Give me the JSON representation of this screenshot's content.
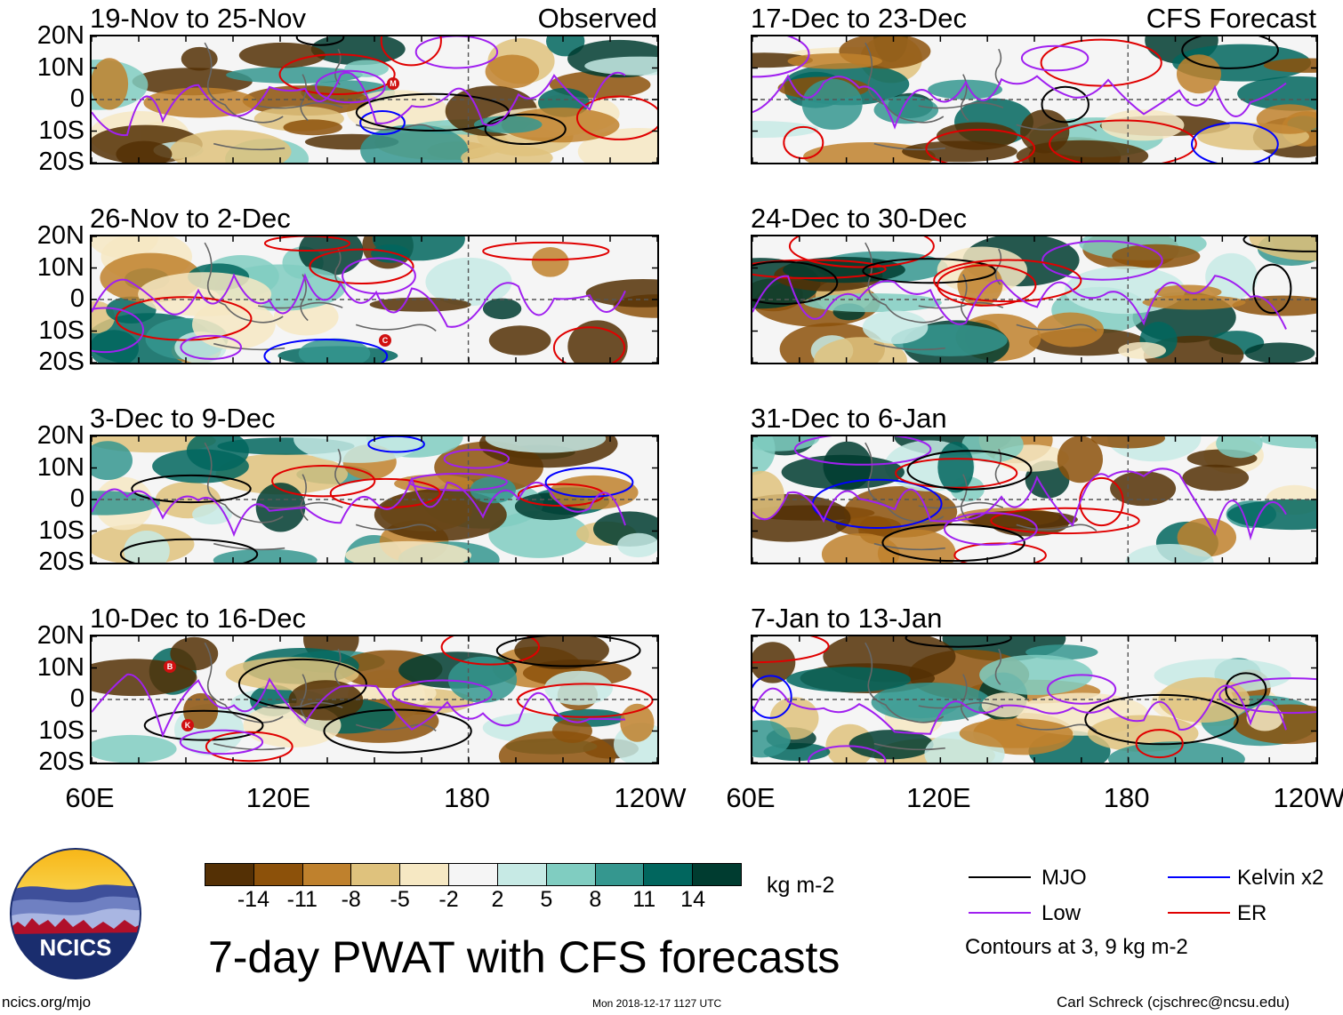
{
  "panels": [
    {
      "title": "19-Nov to 25-Nov",
      "tag": "Observed"
    },
    {
      "title": "17-Dec to 23-Dec",
      "tag": "CFS Forecast"
    },
    {
      "title": "26-Nov to 2-Dec",
      "tag": ""
    },
    {
      "title": "24-Dec to 30-Dec",
      "tag": ""
    },
    {
      "title": "3-Dec to 9-Dec",
      "tag": ""
    },
    {
      "title": "31-Dec to 6-Jan",
      "tag": ""
    },
    {
      "title": "10-Dec to 16-Dec",
      "tag": ""
    },
    {
      "title": "7-Jan to 13-Jan",
      "tag": ""
    }
  ],
  "lat_labels": [
    "20N",
    "10N",
    "0",
    "10S",
    "20S"
  ],
  "lon_labels": [
    "60E",
    "120E",
    "180",
    "120W"
  ],
  "storm_markers": [
    {
      "letter": "M"
    },
    {
      "letter": "C"
    },
    {
      "letter": "B"
    },
    {
      "letter": "K"
    }
  ],
  "colorbar": {
    "ticks": [
      "-14",
      "-11",
      "-8",
      "-5",
      "-2",
      "2",
      "5",
      "8",
      "11",
      "14"
    ],
    "colors": [
      "#543005",
      "#8c510a",
      "#bf812d",
      "#dfc27d",
      "#f6e8c3",
      "#f5f5f5",
      "#c7eae5",
      "#80cdc1",
      "#35978f",
      "#01665e",
      "#003c30"
    ],
    "unit": "kg m-2"
  },
  "legend": {
    "items": [
      {
        "label": "MJO",
        "color": "#000000"
      },
      {
        "label": "Kelvin x2",
        "color": "#0000ff"
      },
      {
        "label": "Low",
        "color": "#a020f0"
      },
      {
        "label": "ER",
        "color": "#e00000"
      }
    ],
    "note": "Contours at 3, 9 kg m-2"
  },
  "main_title": "7-day PWAT with CFS forecasts",
  "logo_text": "NCICS",
  "footer": {
    "url": "ncics.org/mjo",
    "timestamp": "Mon 2018-12-17 1127 UTC",
    "author": "Carl Schreck (cjschrec@ncsu.edu)"
  }
}
